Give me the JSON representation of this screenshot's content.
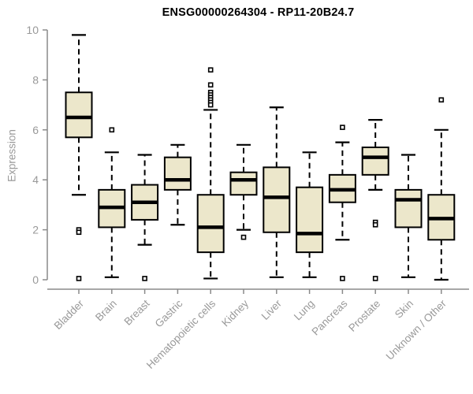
{
  "chart_data": {
    "type": "boxplot",
    "title": "ENSG00000264304 - RP11-20B24.7",
    "xlabel": "",
    "ylabel": "Expression",
    "ylim": [
      0,
      10
    ],
    "yticks": [
      0,
      2,
      4,
      6,
      8,
      10
    ],
    "grid": false,
    "legend": false,
    "categories": [
      "Bladder",
      "Brain",
      "Breast",
      "Gastric",
      "Hematopoietic cells",
      "Kidney",
      "Liver",
      "Lung",
      "Pancreas",
      "Prostate",
      "Skin",
      "Unknown / Other"
    ],
    "boxes": [
      {
        "name": "Bladder",
        "whisker_low": 3.4,
        "q1": 5.7,
        "median": 6.5,
        "q3": 7.5,
        "whisker_high": 9.8,
        "outliers": [
          2.0,
          1.9,
          0.05
        ]
      },
      {
        "name": "Brain",
        "whisker_low": 0.1,
        "q1": 2.1,
        "median": 2.9,
        "q3": 3.6,
        "whisker_high": 5.1,
        "outliers": [
          6.0
        ]
      },
      {
        "name": "Breast",
        "whisker_low": 1.4,
        "q1": 2.4,
        "median": 3.1,
        "q3": 3.8,
        "whisker_high": 5.0,
        "outliers": [
          0.05
        ]
      },
      {
        "name": "Gastric",
        "whisker_low": 2.2,
        "q1": 3.6,
        "median": 4.0,
        "q3": 4.9,
        "whisker_high": 5.4,
        "outliers": []
      },
      {
        "name": "Hematopoietic cells",
        "whisker_low": 0.05,
        "q1": 1.1,
        "median": 2.1,
        "q3": 3.4,
        "whisker_high": 6.8,
        "outliers": [
          8.4,
          7.8,
          7.5,
          7.4,
          7.3,
          7.2,
          7.1,
          7.0
        ]
      },
      {
        "name": "Kidney",
        "whisker_low": 2.0,
        "q1": 3.4,
        "median": 4.0,
        "q3": 4.3,
        "whisker_high": 5.4,
        "outliers": [
          1.7
        ]
      },
      {
        "name": "Liver",
        "whisker_low": 0.1,
        "q1": 1.9,
        "median": 3.3,
        "q3": 4.5,
        "whisker_high": 6.9,
        "outliers": []
      },
      {
        "name": "Lung",
        "whisker_low": 0.1,
        "q1": 1.1,
        "median": 1.85,
        "q3": 3.7,
        "whisker_high": 5.1,
        "outliers": []
      },
      {
        "name": "Pancreas",
        "whisker_low": 1.6,
        "q1": 3.1,
        "median": 3.6,
        "q3": 4.2,
        "whisker_high": 5.5,
        "outliers": [
          6.1,
          0.05
        ]
      },
      {
        "name": "Prostate",
        "whisker_low": 3.6,
        "q1": 4.2,
        "median": 4.9,
        "q3": 5.3,
        "whisker_high": 6.4,
        "outliers": [
          2.3,
          2.2,
          0.05
        ]
      },
      {
        "name": "Skin",
        "whisker_low": 0.1,
        "q1": 2.1,
        "median": 3.2,
        "q3": 3.6,
        "whisker_high": 5.0,
        "outliers": []
      },
      {
        "name": "Unknown / Other",
        "whisker_low": 0.0,
        "q1": 1.6,
        "median": 2.45,
        "q3": 3.4,
        "whisker_high": 6.0,
        "outliers": [
          7.2
        ]
      }
    ],
    "colors": {
      "box_fill": "#ECE7CB",
      "box_stroke": "#000000",
      "median": "#000000",
      "whisker": "#000000",
      "axis": "#8a8a8a",
      "text": "#999999",
      "title": "#000000",
      "background": "#ffffff"
    }
  }
}
